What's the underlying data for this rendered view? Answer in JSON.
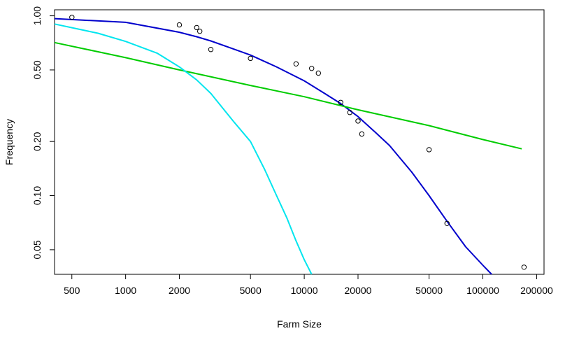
{
  "chart_data": {
    "type": "scatter",
    "xlabel": "Farm Size",
    "ylabel": "Frequency",
    "x_scale": "log",
    "y_scale": "log",
    "xlim": [
      400,
      220000
    ],
    "ylim": [
      0.0365,
      1.08
    ],
    "x_ticks": [
      500,
      1000,
      2000,
      5000,
      10000,
      20000,
      50000,
      100000,
      200000
    ],
    "x_tick_labels": [
      "500",
      "1000",
      "2000",
      "5000",
      "10000",
      "20000",
      "50000",
      "100000",
      "200000"
    ],
    "y_ticks": [
      0.05,
      0.1,
      0.2,
      0.5,
      1.0
    ],
    "y_tick_labels": [
      "0.05",
      "0.10",
      "0.20",
      "0.50",
      "1.00"
    ],
    "grid": false,
    "points": [
      {
        "x": 500,
        "y": 0.98
      },
      {
        "x": 2000,
        "y": 0.89
      },
      {
        "x": 2500,
        "y": 0.86
      },
      {
        "x": 2600,
        "y": 0.82
      },
      {
        "x": 3000,
        "y": 0.65
      },
      {
        "x": 5000,
        "y": 0.58
      },
      {
        "x": 9000,
        "y": 0.54
      },
      {
        "x": 11000,
        "y": 0.51
      },
      {
        "x": 12000,
        "y": 0.48
      },
      {
        "x": 16000,
        "y": 0.33
      },
      {
        "x": 18000,
        "y": 0.29
      },
      {
        "x": 20000,
        "y": 0.26
      },
      {
        "x": 21000,
        "y": 0.22
      },
      {
        "x": 50000,
        "y": 0.18
      },
      {
        "x": 63000,
        "y": 0.07
      },
      {
        "x": 170000,
        "y": 0.04
      }
    ],
    "series": [
      {
        "color": "#0000cc",
        "x": [
          400,
          1000,
          2000,
          2500,
          3000,
          4000,
          5000,
          7000,
          10000,
          13000,
          16000,
          20000,
          25000,
          30000,
          40000,
          50000,
          63000,
          80000,
          100000,
          112000
        ],
        "y": [
          0.965,
          0.92,
          0.81,
          0.765,
          0.725,
          0.655,
          0.605,
          0.52,
          0.435,
          0.37,
          0.325,
          0.275,
          0.225,
          0.19,
          0.135,
          0.1,
          0.072,
          0.052,
          0.041,
          0.0365
        ]
      },
      {
        "color": "#00cc00",
        "x": [
          400,
          1000,
          2000,
          5000,
          10000,
          20000,
          50000,
          100000,
          165000
        ],
        "y": [
          0.71,
          0.585,
          0.5,
          0.41,
          0.355,
          0.3,
          0.245,
          0.205,
          0.182
        ]
      },
      {
        "color": "#00e5ee",
        "x": [
          400,
          700,
          1000,
          1500,
          2000,
          2500,
          3000,
          4000,
          5000,
          6000,
          7000,
          8000,
          9000,
          10000,
          11000
        ],
        "y": [
          0.9,
          0.8,
          0.72,
          0.62,
          0.52,
          0.44,
          0.37,
          0.26,
          0.2,
          0.14,
          0.1,
          0.075,
          0.056,
          0.044,
          0.0365
        ]
      }
    ]
  }
}
